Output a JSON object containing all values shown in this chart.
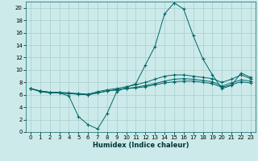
{
  "xlabel": "Humidex (Indice chaleur)",
  "bg_color": "#cceaea",
  "grid_color": "#aacccc",
  "line_color": "#006666",
  "xlim": [
    -0.5,
    23.5
  ],
  "ylim": [
    0,
    21
  ],
  "xticks": [
    0,
    1,
    2,
    3,
    4,
    5,
    6,
    7,
    8,
    9,
    10,
    11,
    12,
    13,
    14,
    15,
    16,
    17,
    18,
    19,
    20,
    21,
    22,
    23
  ],
  "yticks": [
    0,
    2,
    4,
    6,
    8,
    10,
    12,
    14,
    16,
    18,
    20
  ],
  "series_peak_x": [
    0,
    1,
    2,
    3,
    4,
    5,
    6,
    7,
    8,
    9,
    10,
    11,
    12,
    13,
    14,
    15,
    16,
    17,
    18,
    19,
    20,
    21,
    22,
    23
  ],
  "series_peak_y": [
    7.0,
    6.5,
    6.3,
    6.3,
    5.8,
    2.5,
    1.2,
    0.5,
    3.0,
    6.5,
    7.2,
    7.8,
    10.8,
    13.8,
    19.0,
    20.8,
    19.8,
    15.5,
    11.8,
    9.2,
    7.0,
    7.5,
    9.5,
    8.8
  ],
  "series_flat1_x": [
    0,
    1,
    2,
    3,
    4,
    5,
    6,
    7,
    8,
    9,
    10,
    11,
    12,
    13,
    14,
    15,
    16,
    17,
    18,
    19,
    20,
    21,
    22,
    23
  ],
  "series_flat1_y": [
    7.0,
    6.6,
    6.4,
    6.4,
    6.3,
    6.2,
    6.1,
    6.5,
    6.8,
    7.0,
    7.3,
    7.6,
    8.0,
    8.5,
    9.0,
    9.2,
    9.2,
    9.0,
    8.8,
    8.6,
    8.0,
    8.5,
    9.2,
    8.6
  ],
  "series_flat2_x": [
    0,
    1,
    2,
    3,
    4,
    5,
    6,
    7,
    8,
    9,
    10,
    11,
    12,
    13,
    14,
    15,
    16,
    17,
    18,
    19,
    20,
    21,
    22,
    23
  ],
  "series_flat2_y": [
    7.0,
    6.6,
    6.4,
    6.3,
    6.2,
    6.1,
    6.0,
    6.3,
    6.6,
    6.8,
    7.0,
    7.2,
    7.5,
    7.8,
    8.2,
    8.5,
    8.6,
    8.5,
    8.3,
    8.1,
    7.4,
    7.9,
    8.4,
    8.2
  ],
  "series_flat3_x": [
    0,
    1,
    2,
    3,
    4,
    5,
    6,
    7,
    8,
    9,
    10,
    11,
    12,
    13,
    14,
    15,
    16,
    17,
    18,
    19,
    20,
    21,
    22,
    23
  ],
  "series_flat3_y": [
    7.0,
    6.6,
    6.4,
    6.3,
    6.2,
    6.1,
    6.0,
    6.3,
    6.6,
    6.8,
    7.0,
    7.1,
    7.3,
    7.6,
    7.9,
    8.1,
    8.2,
    8.2,
    8.0,
    7.8,
    7.2,
    7.6,
    8.1,
    7.9
  ]
}
